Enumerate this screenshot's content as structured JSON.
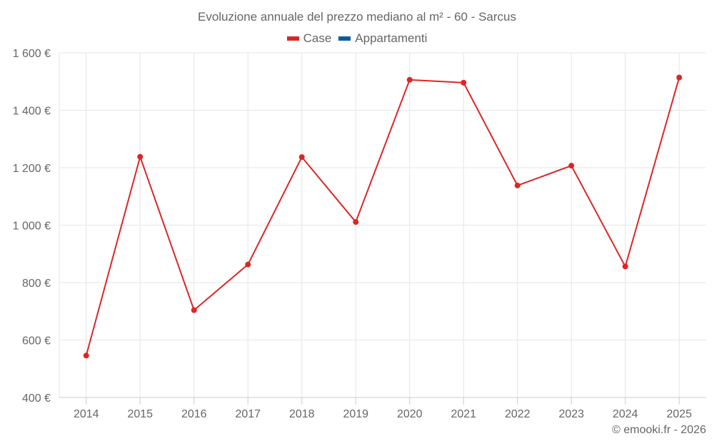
{
  "chart": {
    "title": "Evoluzione annuale del prezzo mediano al m² - 60 - Sarcus",
    "credit": "© emooki.fr - 2026",
    "legend": [
      {
        "label": "Case",
        "color": "#dc2626"
      },
      {
        "label": "Appartamenti",
        "color": "#075e9e"
      }
    ]
  },
  "chart_data": {
    "type": "line",
    "title": "Evoluzione annuale del prezzo mediano al m² - 60 - Sarcus",
    "xlabel": "",
    "ylabel": "",
    "categories": [
      "2014",
      "2015",
      "2016",
      "2017",
      "2018",
      "2019",
      "2020",
      "2021",
      "2022",
      "2023",
      "2024",
      "2025"
    ],
    "series": [
      {
        "name": "Case",
        "color": "#dc2626",
        "values": [
          546,
          1238,
          704,
          863,
          1237,
          1011,
          1506,
          1496,
          1138,
          1207,
          856,
          1514
        ]
      },
      {
        "name": "Appartamenti",
        "color": "#075e9e",
        "values": []
      }
    ],
    "ylim": [
      400,
      1600
    ],
    "yticks": [
      400,
      600,
      800,
      1000,
      1200,
      1400,
      1600
    ],
    "ytick_labels": [
      "400 €",
      "600 €",
      "800 €",
      "1 000 €",
      "1 200 €",
      "1 400 €",
      "1 600 €"
    ],
    "grid": true,
    "legend_position": "top"
  }
}
